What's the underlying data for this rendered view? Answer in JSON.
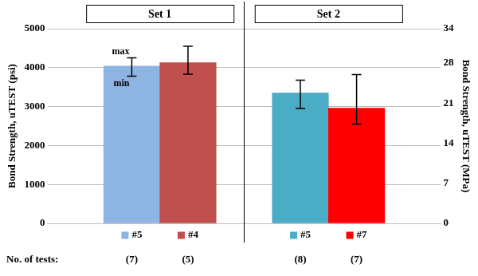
{
  "chart_data": {
    "type": "bar",
    "categories": [
      "#5",
      "#4",
      "#5",
      "#7"
    ],
    "sets": [
      "Set 1",
      "Set 1",
      "Set 2",
      "Set 2"
    ],
    "values": [
      4040,
      4130,
      3350,
      2960
    ],
    "error_min": [
      3780,
      3830,
      2950,
      2550
    ],
    "error_max": [
      4250,
      4550,
      3680,
      3820
    ],
    "annotations": [
      "max",
      "min"
    ],
    "colors": [
      "#8eb4e3",
      "#c0504d",
      "#4bacc6",
      "#ff0000"
    ],
    "tests_label": "No. of tests:",
    "tests": [
      "(7)",
      "(5)",
      "(8)",
      "(7)"
    ],
    "y_label": "Bond Strength, uTEST (psi)",
    "y2_label": "Bond Strength, uTEST (MPa)",
    "ylim": [
      0,
      5000
    ],
    "yticks": [
      0,
      1000,
      2000,
      3000,
      4000,
      5000
    ],
    "y2lim": [
      0,
      34
    ],
    "y2ticks": [
      0,
      7,
      14,
      21,
      28,
      34
    ],
    "grid": true
  }
}
